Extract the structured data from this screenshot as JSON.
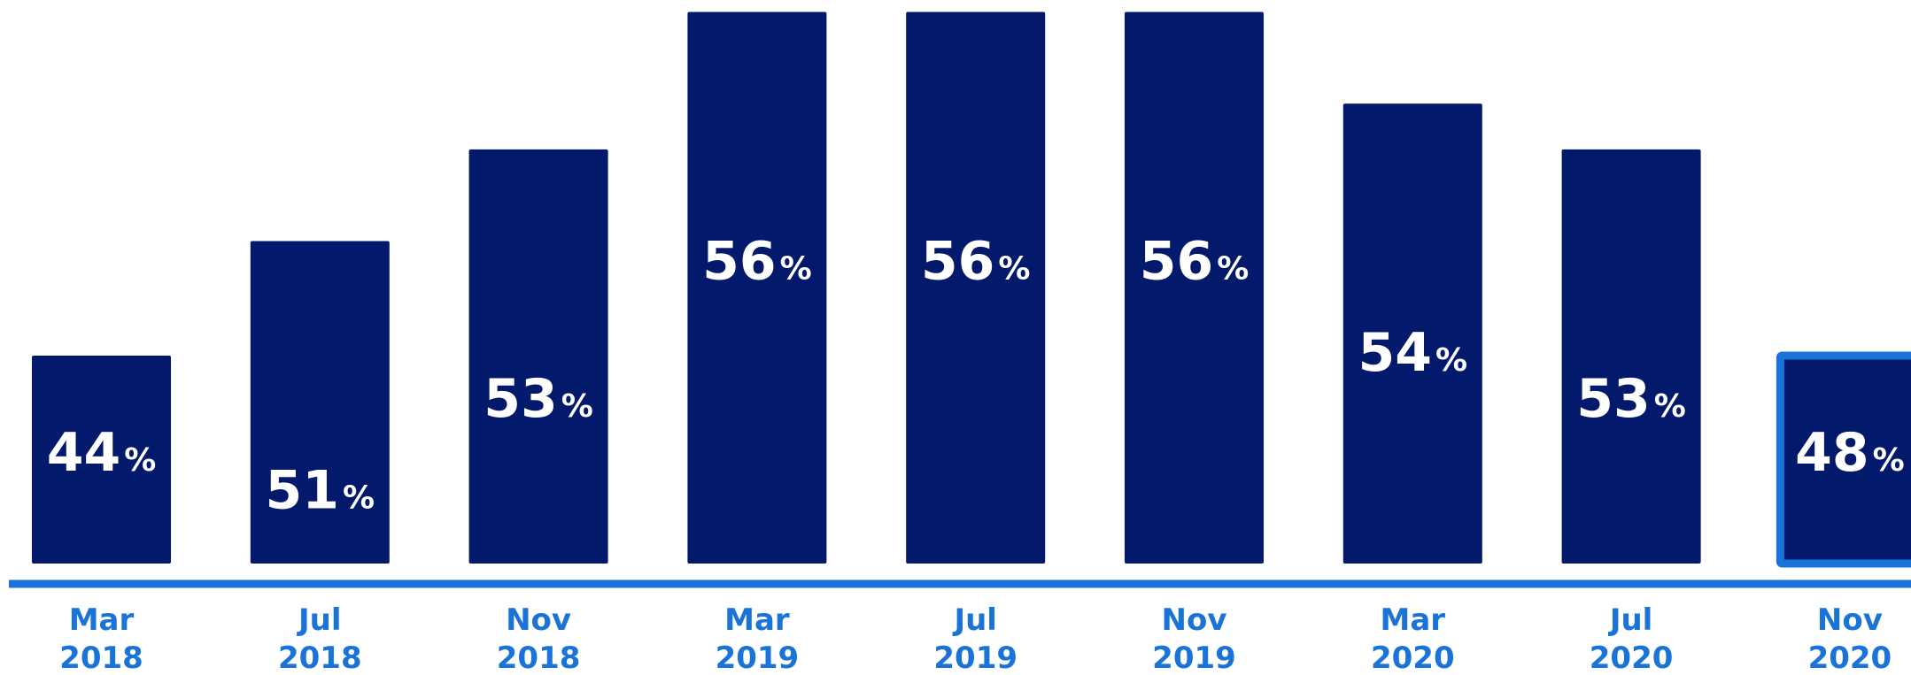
{
  "chart_data": {
    "type": "bar",
    "categories": [
      [
        "Mar",
        "2018"
      ],
      [
        "Jul",
        "2018"
      ],
      [
        "Nov",
        "2018"
      ],
      [
        "Mar",
        "2019"
      ],
      [
        "Jul",
        "2019"
      ],
      [
        "Nov",
        "2019"
      ],
      [
        "Mar",
        "2020"
      ],
      [
        "Jul",
        "2020"
      ],
      [
        "Nov",
        "2020"
      ]
    ],
    "values": [
      44,
      51,
      53,
      56,
      56,
      56,
      54,
      53,
      48
    ],
    "value_suffix": "%",
    "title": "",
    "xlabel": "",
    "ylabel": "",
    "highlighted_index": 8,
    "colors": {
      "bar": "#03196b",
      "highlight_border": "#1a73d9",
      "baseline": "#1a73d9",
      "category_text": "#1a73d9",
      "value_text": "#ffffff"
    }
  }
}
